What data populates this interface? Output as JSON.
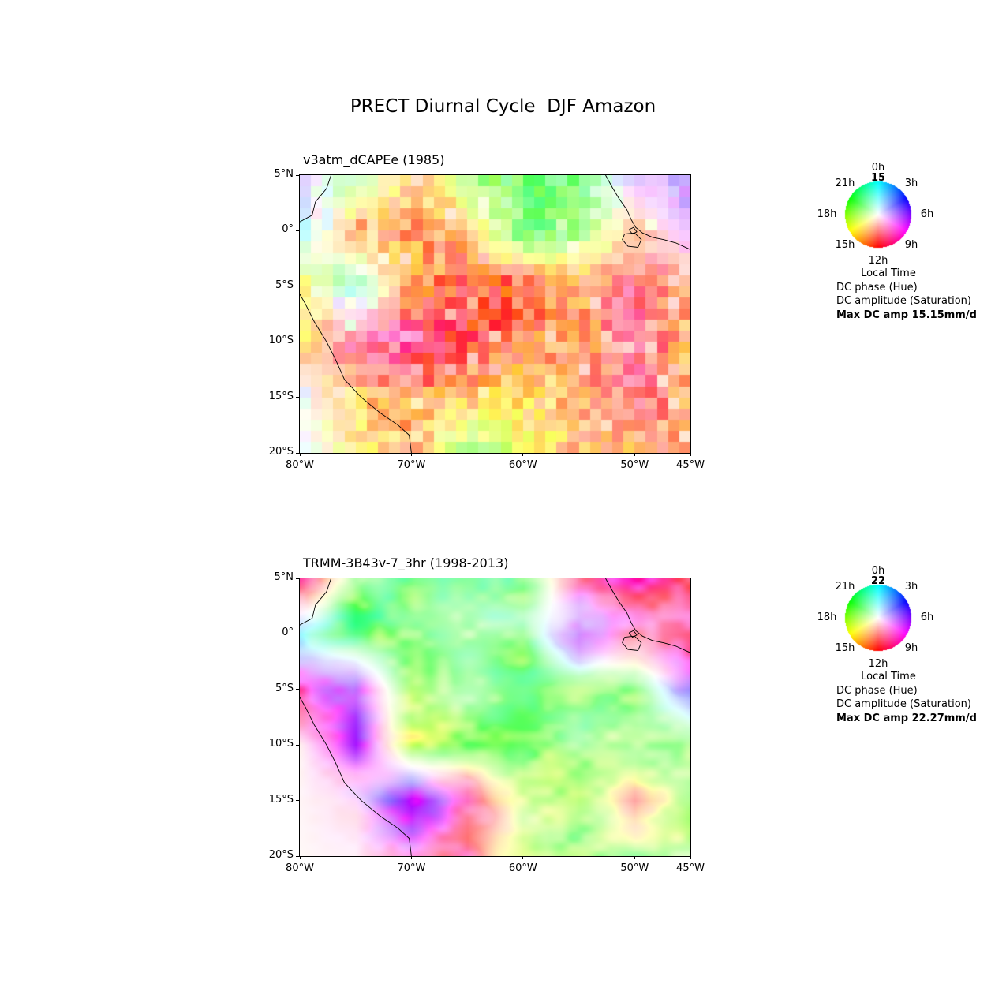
{
  "title": "PRECT Diurnal Cycle  DJF Amazon",
  "colors": {
    "background": "#ffffff",
    "axis": "#000000",
    "text": "#000000"
  },
  "legend": {
    "hour_labels": [
      "0h",
      "3h",
      "6h",
      "9h",
      "12h",
      "15h",
      "18h",
      "21h"
    ],
    "lines": [
      "Local Time",
      "DC phase (Hue)",
      "DC amplitude (Saturation)"
    ]
  },
  "geo_axes": {
    "x_range": [
      -80,
      -45
    ],
    "y_range": [
      -20,
      5
    ],
    "xticks": [
      {
        "label": "80°W",
        "lon": -80
      },
      {
        "label": "70°W",
        "lon": -70
      },
      {
        "label": "60°W",
        "lon": -60
      },
      {
        "label": "50°W",
        "lon": -50
      },
      {
        "label": "45°W",
        "lon": -45
      }
    ],
    "yticks": [
      {
        "label": "5°N",
        "lat": 5
      },
      {
        "label": "0°",
        "lat": 0
      },
      {
        "label": "5°S",
        "lat": -5
      },
      {
        "label": "10°S",
        "lat": -10
      },
      {
        "label": "15°S",
        "lat": -15
      },
      {
        "label": "20°S",
        "lat": -20
      }
    ]
  },
  "coastline": {
    "west_coast": [
      [
        -77.2,
        5
      ],
      [
        -77.6,
        3.8
      ],
      [
        -78.6,
        2.6
      ],
      [
        -78.9,
        1.4
      ],
      [
        -80.0,
        0.8
      ],
      [
        -80.9,
        0.0
      ],
      [
        -80.5,
        -0.9
      ],
      [
        -80.9,
        -1.8
      ],
      [
        -81.3,
        -3.0
      ],
      [
        -81.2,
        -4.2
      ],
      [
        -80.3,
        -5.2
      ],
      [
        -79.5,
        -6.6
      ],
      [
        -78.7,
        -8.2
      ],
      [
        -77.6,
        -10.0
      ],
      [
        -76.8,
        -11.6
      ],
      [
        -76.0,
        -13.4
      ],
      [
        -74.5,
        -15.0
      ],
      [
        -72.8,
        -16.4
      ],
      [
        -71.2,
        -17.5
      ],
      [
        -70.2,
        -18.4
      ],
      [
        -70.0,
        -20.0
      ]
    ],
    "ne_coast": [
      [
        -52.6,
        5
      ],
      [
        -52.0,
        3.9
      ],
      [
        -51.4,
        2.9
      ],
      [
        -50.7,
        1.9
      ],
      [
        -50.3,
        1.0
      ],
      [
        -49.9,
        0.3
      ],
      [
        -49.3,
        -0.2
      ],
      [
        -48.4,
        -0.6
      ],
      [
        -47.4,
        -0.8
      ],
      [
        -46.3,
        -1.1
      ],
      [
        -45.0,
        -1.7
      ]
    ],
    "marajo_island": [
      [
        -50.9,
        -0.3
      ],
      [
        -50.0,
        -0.2
      ],
      [
        -49.4,
        -0.8
      ],
      [
        -49.7,
        -1.5
      ],
      [
        -50.6,
        -1.4
      ],
      [
        -51.1,
        -0.8
      ],
      [
        -50.9,
        -0.3
      ]
    ],
    "small_island": [
      [
        -50.5,
        0.1
      ],
      [
        -50.1,
        0.3
      ],
      [
        -49.8,
        -0.1
      ],
      [
        -50.2,
        -0.3
      ],
      [
        -50.5,
        0.1
      ]
    ]
  },
  "chart_data": [
    {
      "type": "heatmap",
      "title": "v3atm_dCAPEe (1985)",
      "style": "blocky",
      "cell_deg": 1,
      "peak_hour_label": "15",
      "max_amp_label": "Max DC amp 15.15mm/d",
      "max_amp_mm_per_day": 15.15,
      "hue_encoding": "diurnal-cycle phase, local hour",
      "saturation_encoding": "diurnal-cycle amplitude",
      "field": {
        "lons": [
          -80,
          -75,
          -70,
          -65,
          -60,
          -55,
          -50,
          -45
        ],
        "lats": [
          5,
          0,
          -5,
          -10,
          -15,
          -20
        ],
        "phase_hours": [
          [
            6,
            20,
            14,
            19,
            20,
            20,
            5,
            6
          ],
          [
            1,
            14,
            14,
            14,
            20,
            19,
            14,
            6
          ],
          [
            16,
            23,
            14,
            12.5,
            13,
            14,
            11,
            14
          ],
          [
            15,
            10.5,
            10,
            12,
            13,
            14,
            11,
            14
          ],
          [
            8,
            15,
            14,
            14.5,
            15,
            14,
            11.5,
            14
          ],
          [
            6,
            16,
            14,
            19,
            16.5,
            14,
            14,
            13.5
          ]
        ],
        "saturation": [
          [
            0.25,
            0.45,
            0.5,
            0.5,
            0.55,
            0.5,
            0.3,
            0.35
          ],
          [
            0.3,
            0.55,
            0.65,
            0.5,
            0.5,
            0.45,
            0.35,
            0.3
          ],
          [
            0.5,
            0.35,
            0.6,
            0.75,
            0.7,
            0.55,
            0.5,
            0.5
          ],
          [
            0.5,
            0.5,
            0.7,
            0.8,
            0.65,
            0.55,
            0.55,
            0.55
          ],
          [
            0.05,
            0.55,
            0.6,
            0.6,
            0.55,
            0.5,
            0.5,
            0.55
          ],
          [
            0.05,
            0.4,
            0.55,
            0.45,
            0.5,
            0.5,
            0.5,
            0.5
          ]
        ]
      }
    },
    {
      "type": "heatmap",
      "title": "TRMM-3B43v-7_3hr (1998-2013)",
      "style": "smooth",
      "peak_hour_label": "22",
      "max_amp_label": "Max DC amp 22.27mm/d",
      "max_amp_mm_per_day": 22.27,
      "hue_encoding": "diurnal-cycle phase, local hour",
      "saturation_encoding": "diurnal-cycle amplitude",
      "field": {
        "lons": [
          -80,
          -75,
          -70,
          -65,
          -60,
          -55,
          -50,
          -45
        ],
        "lats": [
          5,
          0,
          -5,
          -10,
          -15,
          -20
        ],
        "phase_hours": [
          [
            11,
            20,
            20,
            22,
            20,
            10,
            10,
            10.5
          ],
          [
            0,
            20,
            20,
            20.5,
            20,
            6,
            10,
            10
          ],
          [
            9,
            7,
            18.5,
            19.5,
            20,
            19.5,
            19.5,
            5
          ],
          [
            12,
            7,
            17.5,
            19,
            19.5,
            19.5,
            19,
            19
          ],
          [
            12,
            9,
            5.5,
            10,
            16.5,
            18.5,
            12,
            18.5
          ],
          [
            12,
            10,
            10,
            11,
            18.5,
            19,
            19,
            19
          ]
        ],
        "saturation": [
          [
            0.9,
            0.5,
            0.5,
            0.45,
            0.5,
            0.45,
            0.7,
            0.55
          ],
          [
            0.5,
            0.55,
            0.5,
            0.5,
            0.45,
            0.6,
            0.5,
            0.6
          ],
          [
            0.75,
            0.6,
            0.5,
            0.5,
            0.45,
            0.45,
            0.45,
            0.5
          ],
          [
            0.05,
            0.7,
            0.5,
            0.5,
            0.45,
            0.4,
            0.4,
            0.45
          ],
          [
            0.03,
            0.15,
            0.8,
            0.6,
            0.45,
            0.4,
            0.35,
            0.4
          ],
          [
            0.02,
            0.05,
            0.5,
            0.5,
            0.45,
            0.4,
            0.4,
            0.45
          ]
        ]
      }
    }
  ]
}
